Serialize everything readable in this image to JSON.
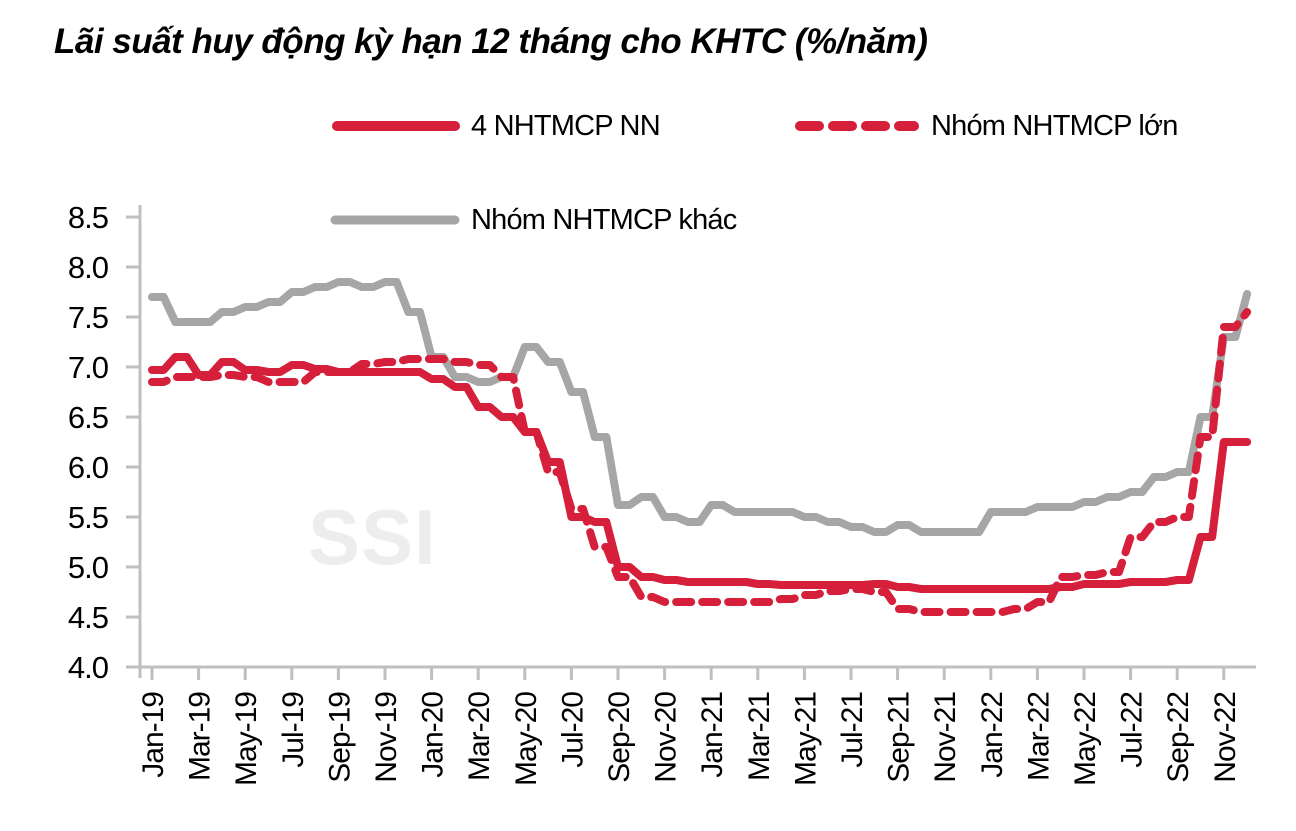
{
  "title": "Lãi suất huy động kỳ hạn 12 tháng cho KHTC (%/năm)",
  "watermark": "SSI",
  "colors": {
    "red": "#D6203B",
    "gray": "#A6A6A6",
    "axis": "#BFBFBF",
    "text": "#000000",
    "watermark": "#EDEDED",
    "background": "#FFFFFF"
  },
  "legend": {
    "items": [
      {
        "label": "4 NHTMCP NN",
        "style": "solid",
        "color": "#D6203B"
      },
      {
        "label": "Nhóm NHTMCP lớn",
        "style": "dashed",
        "color": "#D6203B"
      },
      {
        "label": "Nhóm NHTMCP khác",
        "style": "solid",
        "color": "#A6A6A6"
      }
    ]
  },
  "chart_data": {
    "type": "line",
    "title": "Lãi suất huy động kỳ hạn 12 tháng cho KHTC (%/năm)",
    "xlabel": "",
    "ylabel": "",
    "ylim": [
      4.0,
      8.5
    ],
    "ytick_step": 0.5,
    "grid": false,
    "legend_position": "top",
    "axis_color": "#BFBFBF",
    "categories": [
      "Jan-19",
      "Feb-19",
      "Mar-19",
      "Apr-19",
      "May-19",
      "Jun-19",
      "Jul-19",
      "Aug-19",
      "Sep-19",
      "Oct-19",
      "Nov-19",
      "Dec-19",
      "Jan-20",
      "Feb-20",
      "Mar-20",
      "Apr-20",
      "May-20",
      "Jun-20",
      "Jul-20",
      "Aug-20",
      "Sep-20",
      "Oct-20",
      "Nov-20",
      "Dec-20",
      "Jan-21",
      "Feb-21",
      "Mar-21",
      "Apr-21",
      "May-21",
      "Jun-21",
      "Jul-21",
      "Aug-21",
      "Sep-21",
      "Oct-21",
      "Nov-21",
      "Dec-21",
      "Jan-22",
      "Feb-22",
      "Mar-22",
      "Apr-22",
      "May-22",
      "Jun-22",
      "Jul-22",
      "Aug-22",
      "Sep-22",
      "Oct-22",
      "Nov-22",
      "Dec-22"
    ],
    "x_tick_labels": [
      "Jan-19",
      "Mar-19",
      "May-19",
      "Jul-19",
      "Sep-19",
      "Nov-19",
      "Jan-20",
      "Mar-20",
      "May-20",
      "Jul-20",
      "Sep-20",
      "Nov-20",
      "Jan-21",
      "Mar-21",
      "May-21",
      "Jul-21",
      "Sep-21",
      "Nov-21",
      "Jan-22",
      "Mar-22",
      "May-22",
      "Jul-22",
      "Sep-22",
      "Nov-22"
    ],
    "series": [
      {
        "name": "4 NHTMCP NN",
        "color": "#D6203B",
        "dash": "solid",
        "values": [
          6.97,
          7.1,
          6.92,
          7.05,
          6.97,
          6.95,
          7.02,
          6.98,
          6.95,
          6.95,
          6.95,
          6.95,
          6.88,
          6.8,
          6.6,
          6.5,
          6.35,
          6.05,
          5.5,
          5.45,
          5.0,
          4.9,
          4.87,
          4.85,
          4.85,
          4.85,
          4.83,
          4.82,
          4.82,
          4.82,
          4.82,
          4.83,
          4.8,
          4.78,
          4.78,
          4.78,
          4.78,
          4.78,
          4.78,
          4.8,
          4.83,
          4.83,
          4.85,
          4.85,
          4.87,
          5.3,
          6.25,
          6.25
        ]
      },
      {
        "name": "Nhóm NHTMCP lớn",
        "color": "#D6203B",
        "dash": "dashed",
        "values": [
          6.85,
          6.9,
          6.9,
          6.92,
          6.9,
          6.85,
          6.85,
          6.95,
          6.95,
          7.03,
          7.05,
          7.08,
          7.08,
          7.05,
          7.02,
          6.9,
          6.35,
          5.95,
          5.58,
          5.2,
          4.9,
          4.7,
          4.65,
          4.65,
          4.65,
          4.65,
          4.65,
          4.68,
          4.72,
          4.76,
          4.78,
          4.75,
          4.58,
          4.55,
          4.55,
          4.55,
          4.55,
          4.58,
          4.65,
          4.9,
          4.92,
          4.95,
          5.3,
          5.45,
          5.5,
          6.3,
          7.4,
          7.55
        ]
      },
      {
        "name": "Nhóm NHTMCP khác",
        "color": "#A6A6A6",
        "dash": "solid",
        "values": [
          7.7,
          7.45,
          7.45,
          7.55,
          7.6,
          7.65,
          7.75,
          7.8,
          7.85,
          7.8,
          7.85,
          7.55,
          7.1,
          6.9,
          6.85,
          6.9,
          7.2,
          7.05,
          6.75,
          6.3,
          5.62,
          5.7,
          5.5,
          5.45,
          5.62,
          5.55,
          5.55,
          5.55,
          5.5,
          5.45,
          5.4,
          5.35,
          5.42,
          5.35,
          5.35,
          5.35,
          5.55,
          5.55,
          5.6,
          5.6,
          5.65,
          5.7,
          5.75,
          5.9,
          5.95,
          6.5,
          7.3,
          7.73
        ]
      }
    ]
  }
}
